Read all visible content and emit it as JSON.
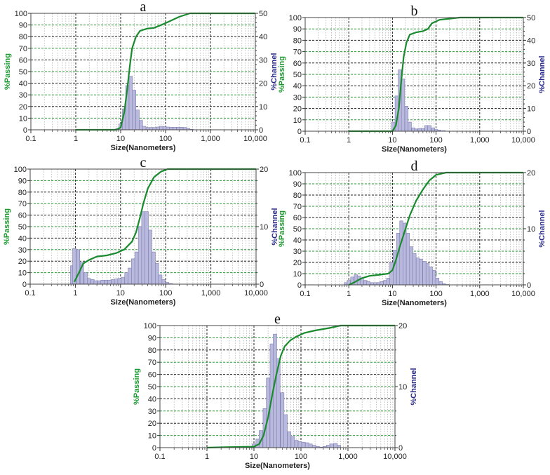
{
  "colors": {
    "curve": "#1a8a2e",
    "bars_fill": "#b9b9dd",
    "bars_stroke": "#7d7db0",
    "left_label": "#1a9a2e",
    "right_label": "#2a2a8a"
  },
  "chart_data": [
    {
      "type": "bar+line",
      "title": "a",
      "xlabel": "Size(Nanometers)",
      "ylabel_left": "%Passing",
      "ylabel_right": "%Channel",
      "xscale": "log",
      "xlim": [
        0.1,
        10000
      ],
      "ylim_left": [
        0,
        100
      ],
      "ylim_right": [
        0,
        50
      ],
      "x_ticks": [
        "0.1",
        "1",
        "10",
        "100",
        "1,000",
        "10,000"
      ],
      "y_ticks_left": [
        "0",
        "10",
        "20",
        "30",
        "40",
        "50",
        "60",
        "70",
        "80",
        "90",
        "100"
      ],
      "y_ticks_right": [
        "0",
        "10",
        "20",
        "30",
        "40",
        "50"
      ],
      "channel_bins": [
        [
          8.4,
          0.5
        ],
        [
          10,
          2.5
        ],
        [
          11.9,
          9
        ],
        [
          14.1,
          19
        ],
        [
          16.8,
          23
        ],
        [
          20,
          17
        ],
        [
          23.8,
          8.5
        ],
        [
          28.3,
          4
        ],
        [
          33.6,
          1.5
        ],
        [
          40,
          1
        ],
        [
          47.6,
          1
        ],
        [
          56.6,
          1
        ],
        [
          67.3,
          1.2
        ],
        [
          80,
          1.5
        ],
        [
          95.1,
          1.3
        ],
        [
          113,
          1.2
        ],
        [
          134.5,
          1.1
        ],
        [
          160,
          1.1
        ],
        [
          190,
          1.1
        ],
        [
          226,
          1.1
        ],
        [
          269,
          1
        ],
        [
          320,
          0.6
        ],
        [
          380,
          0.2
        ]
      ],
      "passing_curve": [
        [
          1,
          0
        ],
        [
          8,
          0
        ],
        [
          10,
          2
        ],
        [
          12,
          15
        ],
        [
          14,
          35
        ],
        [
          16,
          55
        ],
        [
          18,
          70
        ],
        [
          22,
          80
        ],
        [
          27,
          85
        ],
        [
          40,
          87
        ],
        [
          55,
          87.5
        ],
        [
          80,
          90
        ],
        [
          120,
          93
        ],
        [
          200,
          97
        ],
        [
          350,
          100
        ],
        [
          10000,
          100
        ]
      ]
    },
    {
      "type": "bar+line",
      "title": "b",
      "xlabel": "Size(Nanometers)",
      "ylabel_left": "%Passing",
      "ylabel_right": "%Channel",
      "xscale": "log",
      "xlim": [
        0.1,
        10000
      ],
      "ylim_left": [
        0,
        100
      ],
      "ylim_right": [
        0,
        50
      ],
      "x_ticks": [
        "0.1",
        "1",
        "10",
        "100",
        "1,000",
        "10,000"
      ],
      "y_ticks_left": [
        "0",
        "10",
        "20",
        "30",
        "40",
        "50",
        "60",
        "70",
        "80",
        "90",
        "100"
      ],
      "y_ticks_right": [
        "0",
        "10",
        "20",
        "30",
        "40",
        "50"
      ],
      "channel_bins": [
        [
          10.5,
          4
        ],
        [
          12.5,
          15.5
        ],
        [
          14.8,
          27
        ],
        [
          17.5,
          23
        ],
        [
          21,
          11
        ],
        [
          25,
          4
        ],
        [
          30,
          1.5
        ],
        [
          35,
          1
        ],
        [
          42,
          1.25
        ],
        [
          50,
          1.25
        ],
        [
          60,
          2.5
        ],
        [
          70,
          2.5
        ],
        [
          85,
          1.5
        ],
        [
          100,
          0.75
        ],
        [
          120,
          0.5
        ],
        [
          150,
          0.25
        ]
      ],
      "passing_curve": [
        [
          1,
          0
        ],
        [
          10,
          0
        ],
        [
          12,
          5
        ],
        [
          14,
          20
        ],
        [
          16,
          45
        ],
        [
          18,
          65
        ],
        [
          21,
          78
        ],
        [
          25,
          85
        ],
        [
          35,
          87
        ],
        [
          50,
          88
        ],
        [
          65,
          90
        ],
        [
          80,
          95
        ],
        [
          120,
          98
        ],
        [
          350,
          100
        ],
        [
          10000,
          100
        ]
      ]
    },
    {
      "type": "bar+line",
      "title": "c",
      "xlabel": "Size(Nanometers)",
      "ylabel_left": "%Passing",
      "ylabel_right": "%Channel",
      "xscale": "log",
      "xlim": [
        0.1,
        10000
      ],
      "ylim_left": [
        0,
        100
      ],
      "ylim_right": [
        0,
        20
      ],
      "x_ticks": [
        "0.1",
        "1",
        "10",
        "100",
        "1,000",
        "10,000"
      ],
      "y_ticks_left": [
        "0",
        "10",
        "20",
        "30",
        "40",
        "50",
        "60",
        "70",
        "80",
        "90",
        "100"
      ],
      "y_ticks_right": [
        "0",
        "10",
        "20"
      ],
      "channel_bins": [
        [
          0.85,
          3.2
        ],
        [
          0.95,
          6.2
        ],
        [
          1.15,
          6
        ],
        [
          1.4,
          3.8
        ],
        [
          1.7,
          2
        ],
        [
          2,
          1
        ],
        [
          2.4,
          0.8
        ],
        [
          2.8,
          0.6
        ],
        [
          3.4,
          0.6
        ],
        [
          4,
          0.7
        ],
        [
          4.8,
          0.7
        ],
        [
          5.7,
          0.7
        ],
        [
          6.8,
          0.8
        ],
        [
          8,
          0.9
        ],
        [
          9.5,
          1
        ],
        [
          11.3,
          1.2
        ],
        [
          13.5,
          2
        ],
        [
          16,
          2.8
        ],
        [
          19,
          4.4
        ],
        [
          22.6,
          5.6
        ],
        [
          27,
          10
        ],
        [
          32,
          12.6
        ],
        [
          38,
          12.6
        ],
        [
          45,
          9.4
        ],
        [
          54,
          5.6
        ],
        [
          64,
          3.6
        ],
        [
          76,
          1.6
        ],
        [
          90,
          0.8
        ],
        [
          108,
          0.3
        ],
        [
          130,
          0.1
        ]
      ],
      "passing_curve": [
        [
          0.95,
          2
        ],
        [
          1.2,
          10
        ],
        [
          1.5,
          18
        ],
        [
          2,
          21
        ],
        [
          3,
          24
        ],
        [
          5,
          25
        ],
        [
          8,
          27
        ],
        [
          12,
          30
        ],
        [
          18,
          37
        ],
        [
          22,
          45
        ],
        [
          27,
          58
        ],
        [
          32,
          70
        ],
        [
          40,
          83
        ],
        [
          55,
          93
        ],
        [
          80,
          98
        ],
        [
          110,
          100
        ],
        [
          10000,
          100
        ]
      ]
    },
    {
      "type": "bar+line",
      "title": "d",
      "xlabel": "Size(Nanometers)",
      "ylabel_left": "%Passing",
      "ylabel_right": "%Channel",
      "xscale": "log",
      "xlim": [
        0.1,
        10000
      ],
      "ylim_left": [
        0,
        100
      ],
      "ylim_right": [
        0,
        20
      ],
      "x_ticks": [
        "0.1",
        "1",
        "10",
        "100",
        "1,000",
        "10,000"
      ],
      "y_ticks_left": [
        "0",
        "10",
        "20",
        "30",
        "40",
        "50",
        "60",
        "70",
        "80",
        "90",
        "100"
      ],
      "y_ticks_right": [
        "0",
        "10",
        "20"
      ],
      "channel_bins": [
        [
          0.85,
          0.4
        ],
        [
          1,
          0.8
        ],
        [
          1.2,
          1.4
        ],
        [
          1.45,
          1.8
        ],
        [
          1.7,
          1.6
        ],
        [
          2,
          1.2
        ],
        [
          2.4,
          0.8
        ],
        [
          2.8,
          0.6
        ],
        [
          3.4,
          0.4
        ],
        [
          4,
          0.4
        ],
        [
          4.8,
          0.4
        ],
        [
          5.7,
          0.6
        ],
        [
          6.8,
          0.8
        ],
        [
          8,
          1.2
        ],
        [
          9.5,
          4
        ],
        [
          11.3,
          6.2
        ],
        [
          13.5,
          9.2
        ],
        [
          16,
          11.4
        ],
        [
          19,
          11
        ],
        [
          22.6,
          9.2
        ],
        [
          27,
          6.8
        ],
        [
          32,
          5.6
        ],
        [
          38,
          4.8
        ],
        [
          45,
          4.6
        ],
        [
          54,
          4.2
        ],
        [
          64,
          3.8
        ],
        [
          76,
          3.2
        ],
        [
          90,
          2.6
        ],
        [
          107,
          1.2
        ],
        [
          128,
          0.6
        ],
        [
          152,
          0.2
        ],
        [
          180,
          0.06
        ]
      ],
      "passing_curve": [
        [
          1,
          0
        ],
        [
          1.3,
          2
        ],
        [
          2,
          6
        ],
        [
          3,
          8
        ],
        [
          5,
          9
        ],
        [
          8,
          10
        ],
        [
          10,
          13
        ],
        [
          12,
          22
        ],
        [
          15,
          35
        ],
        [
          20,
          50
        ],
        [
          25,
          62
        ],
        [
          35,
          75
        ],
        [
          50,
          85
        ],
        [
          70,
          93
        ],
        [
          100,
          98
        ],
        [
          170,
          100
        ],
        [
          10000,
          100
        ]
      ]
    },
    {
      "type": "bar+line",
      "title": "e",
      "xlabel": "Size(Nanometers)",
      "ylabel_left": "%Passing",
      "ylabel_right": "%Channel",
      "xscale": "log",
      "xlim": [
        0.1,
        10000
      ],
      "ylim_left": [
        0,
        100
      ],
      "ylim_right": [
        0,
        20
      ],
      "x_ticks": [
        "0.1",
        "1",
        "10",
        "100",
        "1,000",
        "10,000"
      ],
      "y_ticks_left": [
        "0",
        "10",
        "20",
        "30",
        "40",
        "50",
        "60",
        "70",
        "80",
        "90",
        "100"
      ],
      "y_ticks_right": [
        "0",
        "10",
        "20"
      ],
      "channel_bins": [
        [
          10,
          0.6
        ],
        [
          12,
          1.4
        ],
        [
          14,
          2.8
        ],
        [
          17,
          6.4
        ],
        [
          20,
          11.4
        ],
        [
          24,
          17
        ],
        [
          28,
          18.6
        ],
        [
          33,
          14.6
        ],
        [
          40,
          9
        ],
        [
          47,
          5.4
        ],
        [
          56,
          2.6
        ],
        [
          67,
          1.8
        ],
        [
          80,
          1.2
        ],
        [
          95,
          1
        ],
        [
          113,
          0.9
        ],
        [
          135,
          0.8
        ],
        [
          160,
          0.6
        ],
        [
          190,
          0.4
        ],
        [
          226,
          0.2
        ],
        [
          269,
          0.1
        ],
        [
          320,
          0.2
        ],
        [
          380,
          0.4
        ],
        [
          450,
          0.6
        ],
        [
          540,
          0.7
        ],
        [
          640,
          0.4
        ]
      ],
      "passing_curve": [
        [
          1,
          0
        ],
        [
          2,
          0.3
        ],
        [
          10,
          0.8
        ],
        [
          13,
          3
        ],
        [
          16,
          10
        ],
        [
          20,
          25
        ],
        [
          25,
          45
        ],
        [
          30,
          60
        ],
        [
          37,
          75
        ],
        [
          45,
          83
        ],
        [
          60,
          88
        ],
        [
          80,
          91
        ],
        [
          120,
          94
        ],
        [
          200,
          96
        ],
        [
          400,
          98
        ],
        [
          700,
          100
        ],
        [
          10000,
          100
        ]
      ]
    }
  ]
}
